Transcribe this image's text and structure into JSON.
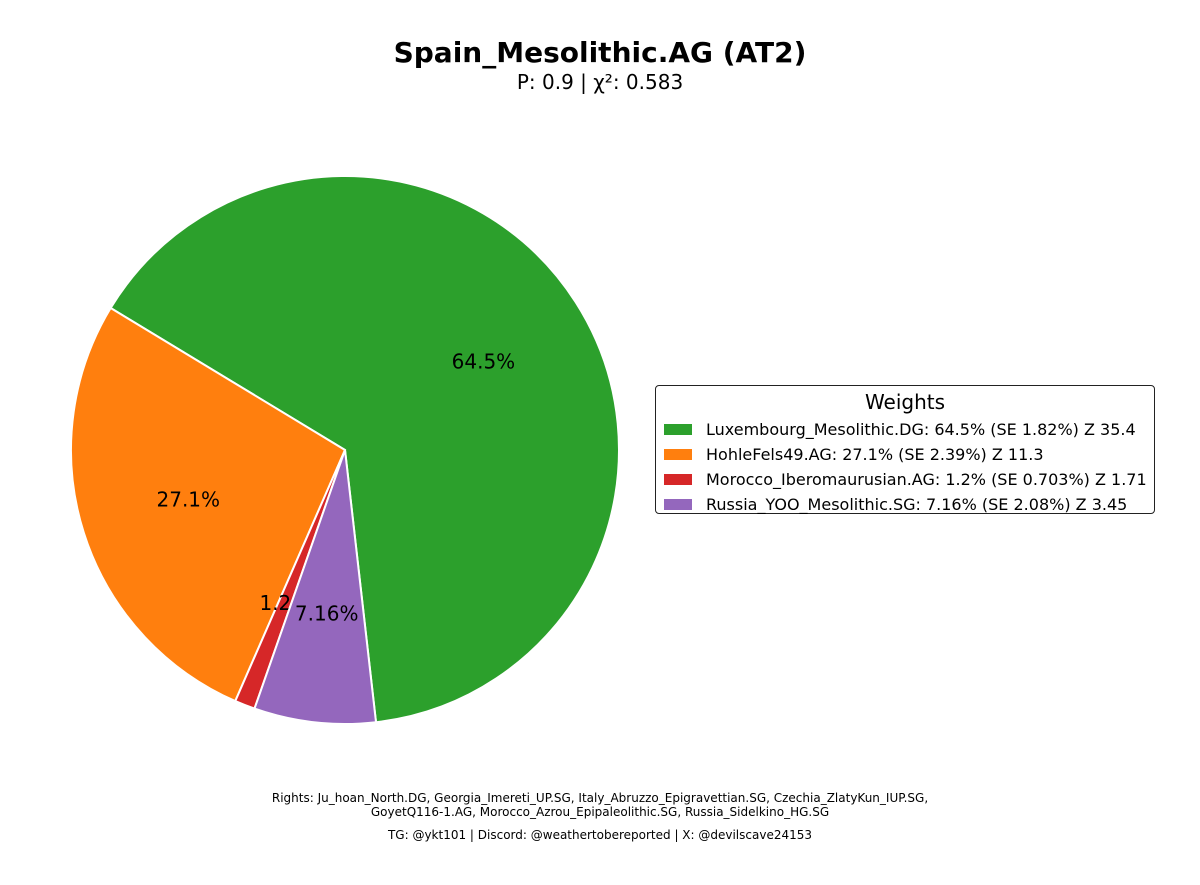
{
  "chart_data": {
    "type": "pie",
    "title": "Spain_Mesolithic.AG (AT2)",
    "subtitle": "P: 0.9 | χ²: 0.583",
    "slices": [
      {
        "name": "Luxembourg_Mesolithic.DG",
        "value": 64.5,
        "label": "64.5%",
        "color": "#2ca02c"
      },
      {
        "name": "HohleFels49.AG",
        "value": 27.1,
        "label": "27.1%",
        "color": "#ff7f0e"
      },
      {
        "name": "Morocco_Iberomaurusian.AG",
        "value": 1.2,
        "label": "1.2%",
        "color": "#d62728"
      },
      {
        "name": "Russia_YOO_Mesolithic.SG",
        "value": 7.16,
        "label": "7.16%",
        "color": "#9467bd"
      }
    ],
    "legend": {
      "title": "Weights",
      "placement": "right",
      "entries": [
        "Luxembourg_Mesolithic.DG: 64.5% (SE 1.82%) Z 35.4",
        "HohleFels49.AG: 27.1% (SE 2.39%) Z 11.3",
        "Morocco_Iberomaurusian.AG: 1.2% (SE 0.703%) Z 1.71",
        "Russia_YOO_Mesolithic.SG: 7.16% (SE 2.08%) Z 3.45"
      ]
    }
  },
  "footer": {
    "rights_line1": "Rights: Ju_hoan_North.DG, Georgia_Imereti_UP.SG, Italy_Abruzzo_Epigravettian.SG, Czechia_ZlatyKun_IUP.SG,",
    "rights_line2": "GoyetQ116-1.AG, Morocco_Azrou_Epipaleolithic.SG, Russia_Sidelkino_HG.SG",
    "contacts": "TG: @ykt101 | Discord: @weathertobereported | X: @devilscave24153"
  }
}
